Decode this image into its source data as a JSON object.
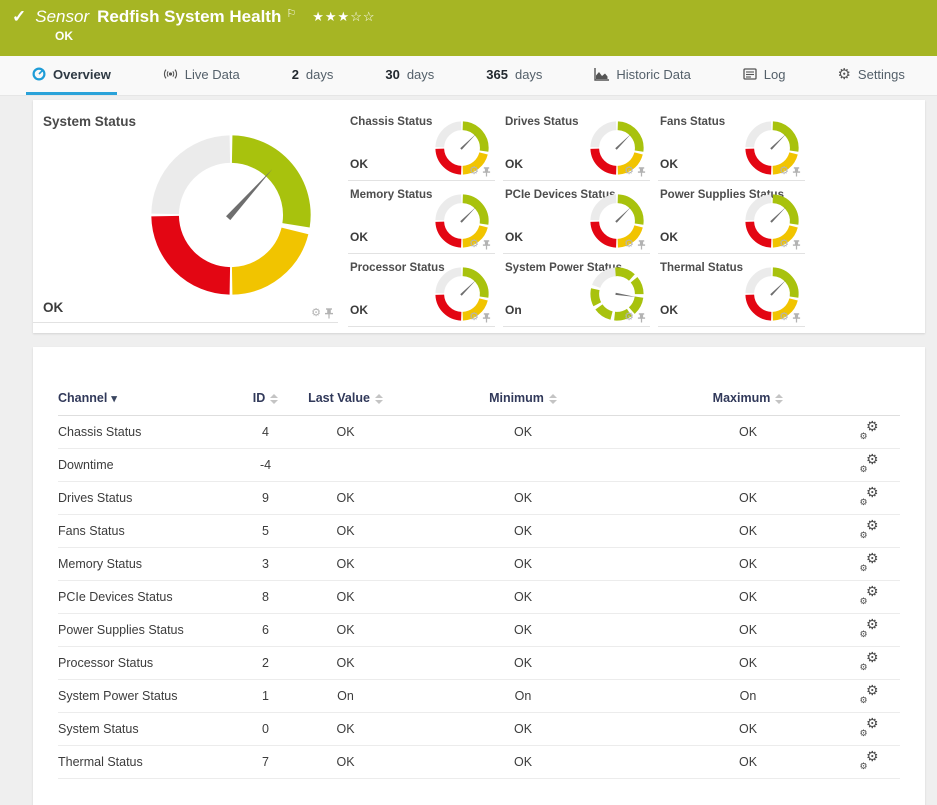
{
  "icons": {
    "check": "✓",
    "flag": "⚐",
    "gear": "⚙",
    "sort_desc": "▾"
  },
  "colors": {
    "header_green": "#a6b524",
    "gauge_green": "#a8c20d",
    "gauge_yellow": "#f1c400",
    "gauge_red": "#e30613",
    "gauge_gray": "#ebebeb",
    "accent_blue": "#2aa2d9"
  },
  "header": {
    "kind_label": "Sensor",
    "title": "Redfish System Health",
    "stars_text": "★★★☆☆",
    "stars_filled": 3,
    "stars_total": 5,
    "status": "OK"
  },
  "tabs": [
    {
      "id": "overview",
      "icon": "gauge",
      "num": "",
      "label": "Overview",
      "active": true
    },
    {
      "id": "live-data",
      "icon": "live",
      "num": "",
      "label": "Live Data",
      "active": false
    },
    {
      "id": "2-days",
      "num": "2",
      "label": "days",
      "active": false
    },
    {
      "id": "30-days",
      "num": "30",
      "label": "days",
      "active": false
    },
    {
      "id": "365-days",
      "num": "365",
      "label": "days",
      "active": false
    },
    {
      "id": "historic-data",
      "icon": "chart",
      "num": "",
      "label": "Historic Data",
      "active": false
    },
    {
      "id": "log",
      "icon": "log",
      "num": "",
      "label": "Log",
      "active": false
    },
    {
      "id": "settings",
      "icon": "gear",
      "num": "",
      "label": "Settings",
      "active": false
    }
  ],
  "overview": {
    "main_gauge": {
      "title": "System Status",
      "value": "OK",
      "needle_deg": 42
    },
    "tiles": [
      {
        "id": "chassis-status",
        "title": "Chassis Status",
        "value": "OK",
        "type": "status",
        "needle_deg": 45
      },
      {
        "id": "drives-status",
        "title": "Drives Status",
        "value": "OK",
        "type": "status",
        "needle_deg": 45
      },
      {
        "id": "fans-status",
        "title": "Fans Status",
        "value": "OK",
        "type": "status",
        "needle_deg": 45
      },
      {
        "id": "memory-status",
        "title": "Memory Status",
        "value": "OK",
        "type": "status",
        "needle_deg": 45
      },
      {
        "id": "pcie-devices-status",
        "title": "PCIe Devices Status",
        "value": "OK",
        "type": "status",
        "needle_deg": 45
      },
      {
        "id": "power-supplies-status",
        "title": "Power Supplies Status",
        "value": "OK",
        "type": "status",
        "needle_deg": 45
      },
      {
        "id": "processor-status",
        "title": "Processor Status",
        "value": "OK",
        "type": "status",
        "needle_deg": 45
      },
      {
        "id": "system-power-status",
        "title": "System Power Status",
        "value": "On",
        "type": "segmented",
        "needle_deg": 99
      },
      {
        "id": "thermal-status",
        "title": "Thermal Status",
        "value": "OK",
        "type": "status",
        "needle_deg": 45
      }
    ]
  },
  "table": {
    "columns": [
      {
        "label": "Channel",
        "sorted": "desc"
      },
      {
        "label": "ID"
      },
      {
        "label": "Last Value"
      },
      {
        "label": "Minimum"
      },
      {
        "label": "Maximum"
      }
    ],
    "rows": [
      {
        "channel": "Chassis Status",
        "id": "4",
        "last": "OK",
        "min": "OK",
        "max": "OK"
      },
      {
        "channel": "Downtime",
        "id": "-4",
        "last": "",
        "min": "",
        "max": ""
      },
      {
        "channel": "Drives Status",
        "id": "9",
        "last": "OK",
        "min": "OK",
        "max": "OK"
      },
      {
        "channel": "Fans Status",
        "id": "5",
        "last": "OK",
        "min": "OK",
        "max": "OK"
      },
      {
        "channel": "Memory Status",
        "id": "3",
        "last": "OK",
        "min": "OK",
        "max": "OK"
      },
      {
        "channel": "PCIe Devices Status",
        "id": "8",
        "last": "OK",
        "min": "OK",
        "max": "OK"
      },
      {
        "channel": "Power Supplies Status",
        "id": "6",
        "last": "OK",
        "min": "OK",
        "max": "OK"
      },
      {
        "channel": "Processor Status",
        "id": "2",
        "last": "OK",
        "min": "OK",
        "max": "OK"
      },
      {
        "channel": "System Power Status",
        "id": "1",
        "last": "On",
        "min": "On",
        "max": "On"
      },
      {
        "channel": "System Status",
        "id": "0",
        "last": "OK",
        "min": "OK",
        "max": "OK"
      },
      {
        "channel": "Thermal Status",
        "id": "7",
        "last": "OK",
        "min": "OK",
        "max": "OK"
      }
    ]
  }
}
